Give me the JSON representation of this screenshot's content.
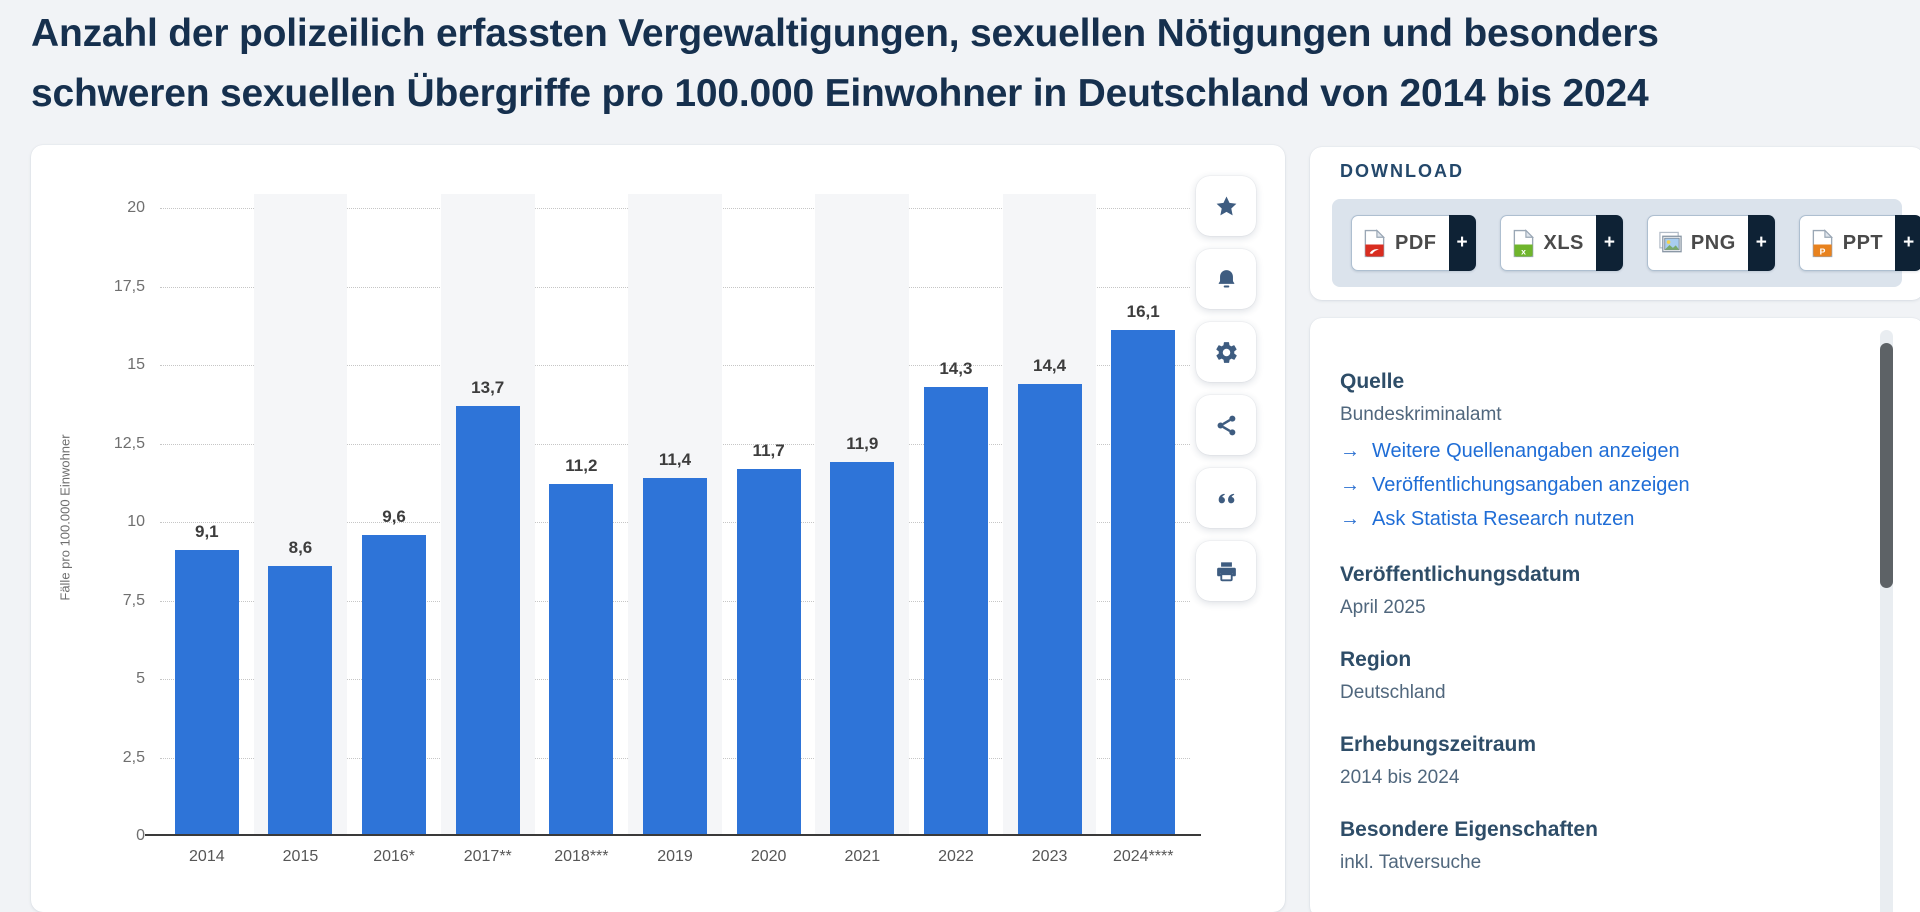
{
  "page": {
    "title_line1": "Anzahl der polizeilich erfassten Vergewaltigungen, sexuellen Nötigungen und besonders",
    "title_line2": "schweren sexuellen Übergriffe pro 100.000 Einwohner in Deutschland von 2014 bis 2024"
  },
  "chart_data": {
    "type": "bar",
    "title": "Anzahl der polizeilich erfassten Vergewaltigungen, sexuellen Nötigungen und besonders schweren sexuellen Übergriffe pro 100.000 Einwohner in Deutschland von 2014 bis 2024",
    "categories": [
      "2014",
      "2015",
      "2016*",
      "2017**",
      "2018***",
      "2019",
      "2020",
      "2021",
      "2022",
      "2023",
      "2024****"
    ],
    "values": [
      9.1,
      8.6,
      9.6,
      13.7,
      11.2,
      11.4,
      11.7,
      11.9,
      14.3,
      14.4,
      16.1
    ],
    "value_labels": [
      "9,1",
      "8,6",
      "9,6",
      "13,7",
      "11,2",
      "11,4",
      "11,7",
      "11,9",
      "14,3",
      "14,4",
      "16,1"
    ],
    "xlabel": "",
    "ylabel": "Fälle pro 100.000 Einwohner",
    "ylim": [
      0,
      20
    ],
    "ytick_step": 2.5,
    "ytick_labels": [
      "0",
      "2,5",
      "5",
      "7,5",
      "10",
      "12,5",
      "15",
      "17,5",
      "20"
    ],
    "grid": "dotted horizontal",
    "legend": "none",
    "bar_color": "#2e74d8",
    "alt_column_band_color": "#f5f6f8"
  },
  "toolbar": {
    "items": [
      {
        "icon": "favorite-star-icon"
      },
      {
        "icon": "alert-bell-icon"
      },
      {
        "icon": "settings-gear-icon"
      },
      {
        "icon": "share-icon"
      },
      {
        "icon": "cite-quote-icon"
      },
      {
        "icon": "print-icon"
      }
    ]
  },
  "download": {
    "label": "DOWNLOAD",
    "plus_label": "+",
    "formats": [
      {
        "label": "PDF",
        "icon": "pdf-file-icon",
        "color": "#d92d20"
      },
      {
        "label": "XLS",
        "icon": "xls-file-icon",
        "color": "#6fb52c"
      },
      {
        "label": "PNG",
        "icon": "png-image-icon",
        "color": "#a8cdf0"
      },
      {
        "label": "PPT",
        "icon": "ppt-file-icon",
        "color": "#e8821e"
      }
    ]
  },
  "info": {
    "link_arrow": "→",
    "sections": [
      {
        "heading": "Quelle",
        "value": "Bundeskriminalamt",
        "links": [
          "Weitere Quellenangaben anzeigen",
          "Veröffentlichungsangaben anzeigen",
          "Ask Statista Research nutzen"
        ]
      },
      {
        "heading": "Veröffentlichungsdatum",
        "value": "April 2025"
      },
      {
        "heading": "Region",
        "value": "Deutschland"
      },
      {
        "heading": "Erhebungszeitraum",
        "value": "2014 bis 2024"
      },
      {
        "heading": "Besondere Eigenschaften",
        "value": "inkl. Tatversuche"
      }
    ]
  }
}
